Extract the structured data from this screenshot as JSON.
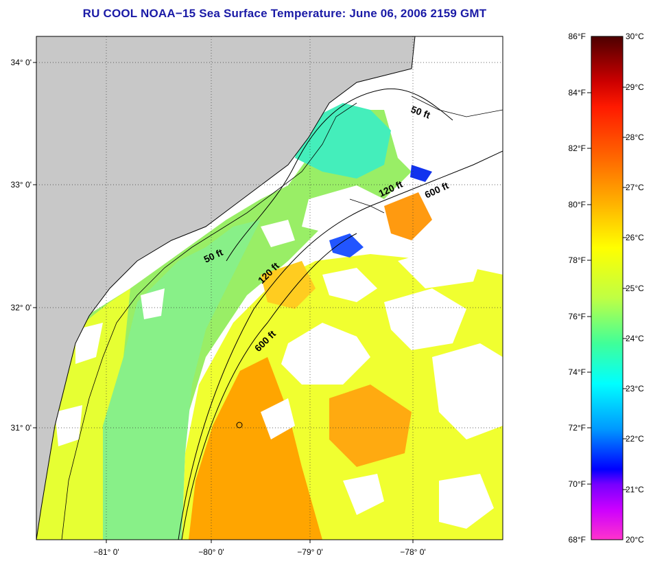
{
  "title": "RU COOL  NOAA−15  Sea Surface Temperature:  June 06, 2006 2159 GMT",
  "lat_labels": [
    "34° 0'",
    "33° 0'",
    "32° 0'",
    "31° 0'"
  ],
  "lon_labels": [
    "−81° 0'",
    "−80° 0'",
    "−79° 0'",
    "−78° 0'"
  ],
  "contours": {
    "c50_a": "50 ft",
    "c50_b": "50 ft",
    "c120_a": "120 ft",
    "c120_b": "120 ft",
    "c600_a": "600 ft",
    "c600_b": "600 ft"
  },
  "colorbar": {
    "fahrenheit": [
      "86°F",
      "84°F",
      "82°F",
      "80°F",
      "78°F",
      "76°F",
      "74°F",
      "72°F",
      "70°F",
      "68°F"
    ],
    "celsius": [
      "30°C",
      "29°C",
      "28°C",
      "27°C",
      "26°C",
      "25°C",
      "24°C",
      "23°C",
      "22°C",
      "21°C",
      "20°C"
    ]
  },
  "colors": {
    "title": "#1a1aa6",
    "land": "#c8c8c8",
    "cloud": "#ffffff"
  }
}
